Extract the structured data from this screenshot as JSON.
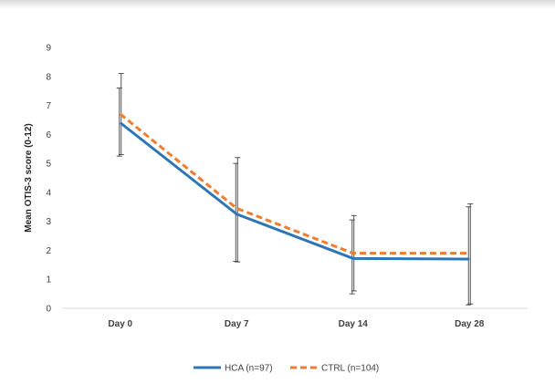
{
  "chart_data": {
    "type": "line",
    "ylabel": "Mean OTIS-3 score (0-12)",
    "xlabel": "",
    "title": "",
    "ylim": [
      0,
      9
    ],
    "yticks": [
      0,
      1,
      2,
      3,
      4,
      5,
      6,
      7,
      8,
      9
    ],
    "categories": [
      "Day 0",
      "Day 7",
      "Day 14",
      "Day 28"
    ],
    "grid": false,
    "legend_position": "bottom",
    "series": [
      {
        "name": "HCA (n=97)",
        "color": "#2e75b6",
        "line_style": "solid",
        "values": [
          6.4,
          3.25,
          1.72,
          1.7
        ],
        "error_low": [
          5.25,
          1.62,
          0.5,
          0.12
        ],
        "error_high": [
          7.6,
          5.0,
          3.05,
          3.5
        ]
      },
      {
        "name": "CTRL (n=104)",
        "color": "#ed7d31",
        "line_style": "dashed",
        "values": [
          6.7,
          3.45,
          1.9,
          1.9
        ],
        "error_low": [
          5.3,
          1.6,
          0.6,
          0.15
        ],
        "error_high": [
          8.1,
          5.2,
          3.2,
          3.6
        ]
      }
    ]
  }
}
